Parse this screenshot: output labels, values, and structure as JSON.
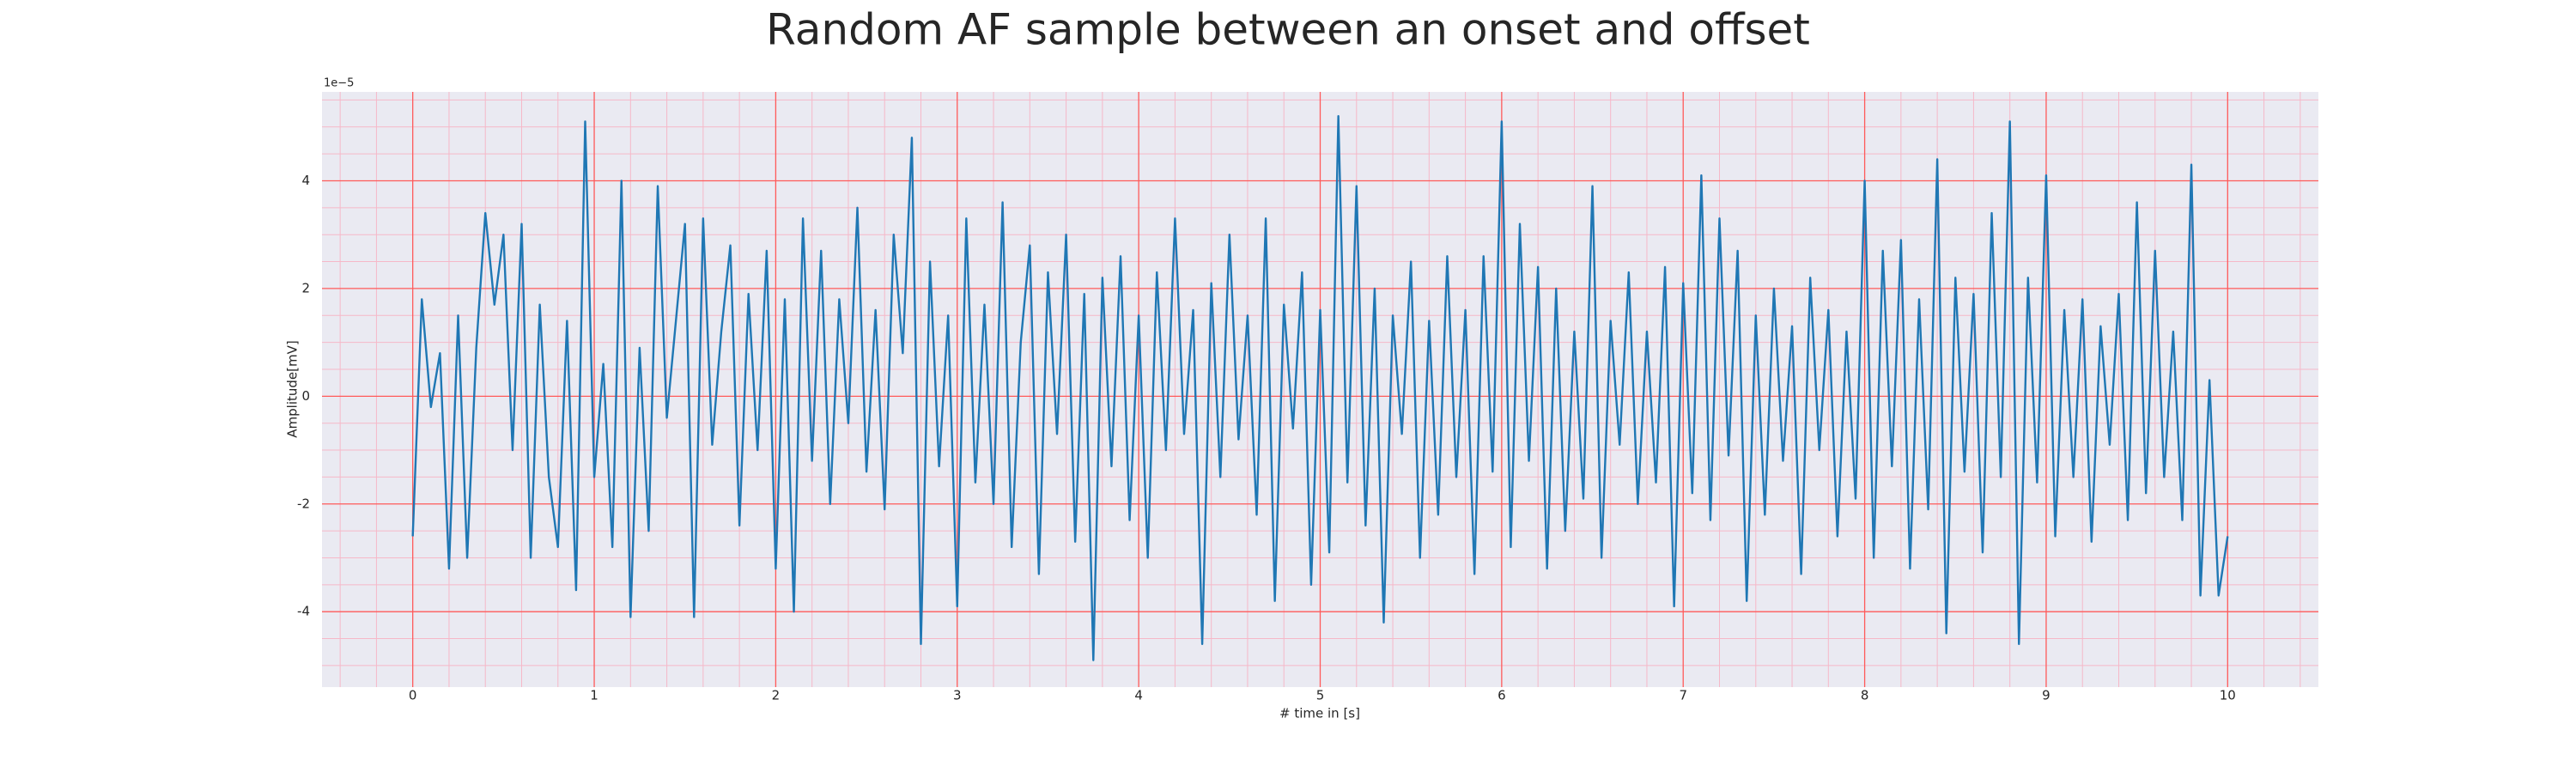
{
  "chart_data": {
    "type": "line",
    "title": "Random AF sample between an onset and offset",
    "xlabel": "# time in [s]",
    "ylabel": "Amplitude[mV]",
    "y_offset_label": "1e−5",
    "xlim": [
      -0.5,
      10.5
    ],
    "ylim": [
      -5.4,
      5.65
    ],
    "xticks": [
      0,
      1,
      2,
      3,
      4,
      5,
      6,
      7,
      8,
      9,
      10
    ],
    "yticks": [
      -4,
      -2,
      0,
      2,
      4
    ],
    "grid": true,
    "minor_grid": true,
    "grid_color": "#ff5a5a",
    "minor_grid_color": "#f6b8c8",
    "background": "#eaeaf2",
    "x": [
      0,
      0.05,
      0.1,
      0.15,
      0.2,
      0.25,
      0.3,
      0.35,
      0.4,
      0.45,
      0.5,
      0.55,
      0.6,
      0.65,
      0.7,
      0.75,
      0.8,
      0.85,
      0.9,
      0.95,
      1,
      1.05,
      1.1,
      1.15,
      1.2,
      1.25,
      1.3,
      1.35,
      1.4,
      1.45,
      1.5,
      1.55,
      1.6,
      1.65,
      1.7,
      1.75,
      1.8,
      1.85,
      1.9,
      1.95,
      2,
      2.05,
      2.1,
      2.15,
      2.2,
      2.25,
      2.3,
      2.35,
      2.4,
      2.45,
      2.5,
      2.55,
      2.6,
      2.65,
      2.7,
      2.75,
      2.8,
      2.85,
      2.9,
      2.95,
      3,
      3.05,
      3.1,
      3.15,
      3.2,
      3.25,
      3.3,
      3.35,
      3.4,
      3.45,
      3.5,
      3.55,
      3.6,
      3.65,
      3.7,
      3.75,
      3.8,
      3.85,
      3.9,
      3.95,
      4,
      4.05,
      4.1,
      4.15,
      4.2,
      4.25,
      4.3,
      4.35,
      4.4,
      4.45,
      4.5,
      4.55,
      4.6,
      4.65,
      4.7,
      4.75,
      4.8,
      4.85,
      4.9,
      4.95,
      5,
      5.05,
      5.1,
      5.15,
      5.2,
      5.25,
      5.3,
      5.35,
      5.4,
      5.45,
      5.5,
      5.55,
      5.6,
      5.65,
      5.7,
      5.75,
      5.8,
      5.85,
      5.9,
      5.95,
      6,
      6.05,
      6.1,
      6.15,
      6.2,
      6.25,
      6.3,
      6.35,
      6.4,
      6.45,
      6.5,
      6.55,
      6.6,
      6.65,
      6.7,
      6.75,
      6.8,
      6.85,
      6.9,
      6.95,
      7,
      7.05,
      7.1,
      7.15,
      7.2,
      7.25,
      7.3,
      7.35,
      7.4,
      7.45,
      7.5,
      7.55,
      7.6,
      7.65,
      7.7,
      7.75,
      7.8,
      7.85,
      7.9,
      7.95,
      8,
      8.05,
      8.1,
      8.15,
      8.2,
      8.25,
      8.3,
      8.35,
      8.4,
      8.45,
      8.5,
      8.55,
      8.6,
      8.65,
      8.7,
      8.75,
      8.8,
      8.85,
      8.9,
      8.95,
      9,
      9.05,
      9.1,
      9.15,
      9.2,
      9.25,
      9.3,
      9.35,
      9.4,
      9.45,
      9.5,
      9.55,
      9.6,
      9.65,
      9.7,
      9.75,
      9.8,
      9.85,
      9.9,
      9.95,
      10
    ],
    "series": [
      {
        "color": "#1f77b4",
        "values": [
          -2.6,
          1.8,
          -0.2,
          0.8,
          -3.2,
          1.5,
          -3.0,
          0.9,
          3.4,
          1.7,
          3.0,
          -1.0,
          3.2,
          -3.0,
          1.7,
          -1.5,
          -2.8,
          1.4,
          -3.6,
          5.1,
          -1.5,
          0.6,
          -2.8,
          4.0,
          -4.1,
          0.9,
          -2.5,
          3.9,
          -0.4,
          1.4,
          3.2,
          -4.1,
          3.3,
          -0.9,
          1.2,
          2.8,
          -2.4,
          1.9,
          -1.0,
          2.7,
          -3.2,
          1.8,
          -4.0,
          3.3,
          -1.2,
          2.7,
          -2.0,
          1.8,
          -0.5,
          3.5,
          -1.4,
          1.6,
          -2.1,
          3.0,
          0.8,
          4.8,
          -4.6,
          2.5,
          -1.3,
          1.5,
          -3.9,
          3.3,
          -1.6,
          1.7,
          -2.0,
          3.6,
          -2.8,
          1.0,
          2.8,
          -3.3,
          2.3,
          -0.7,
          3.0,
          -2.7,
          1.9,
          -4.9,
          2.2,
          -1.3,
          2.6,
          -2.3,
          1.5,
          -3.0,
          2.3,
          -1.0,
          3.3,
          -0.7,
          1.6,
          -4.6,
          2.1,
          -1.5,
          3.0,
          -0.8,
          1.5,
          -2.2,
          3.3,
          -3.8,
          1.7,
          -0.6,
          2.3,
          -3.5,
          1.6,
          -2.9,
          5.2,
          -1.6,
          3.9,
          -2.4,
          2.0,
          -4.2,
          1.5,
          -0.7,
          2.5,
          -3.0,
          1.4,
          -2.2,
          2.6,
          -1.5,
          1.6,
          -3.3,
          2.6,
          -1.4,
          5.1,
          -2.8,
          3.2,
          -1.2,
          2.4,
          -3.2,
          2.0,
          -2.5,
          1.2,
          -1.9,
          3.9,
          -3.0,
          1.4,
          -0.9,
          2.3,
          -2.0,
          1.2,
          -1.6,
          2.4,
          -3.9,
          2.1,
          -1.8,
          4.1,
          -2.3,
          3.3,
          -1.1,
          2.7,
          -3.8,
          1.5,
          -2.2,
          2.0,
          -1.2,
          1.3,
          -3.3,
          2.2,
          -1.0,
          1.6,
          -2.6,
          1.2,
          -1.9,
          4.0,
          -3.0,
          2.7,
          -1.3,
          2.9,
          -3.2,
          1.8,
          -2.1,
          4.4,
          -4.4,
          2.2,
          -1.4,
          1.9,
          -2.9,
          3.4,
          -1.5,
          5.1,
          -4.6,
          2.2,
          -1.6,
          4.1,
          -2.6,
          1.6,
          -1.5,
          1.8,
          -2.7,
          1.3,
          -0.9,
          1.9,
          -2.3,
          3.6,
          -1.8,
          2.7,
          -1.5,
          1.2,
          -2.3,
          4.3,
          -3.7,
          0.3,
          -3.7,
          -2.6
        ]
      }
    ]
  }
}
